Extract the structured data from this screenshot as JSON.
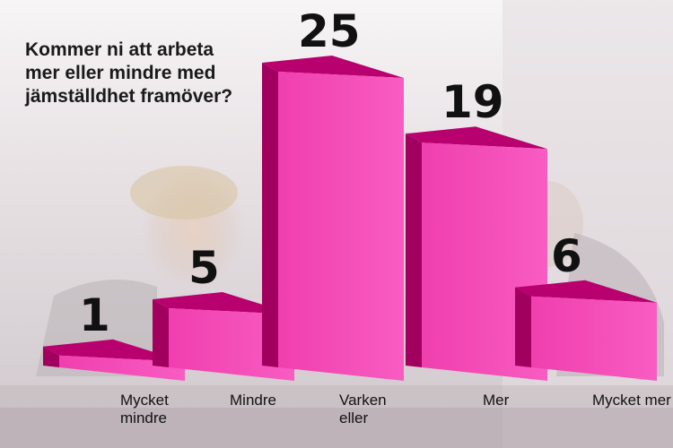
{
  "chart_data": {
    "type": "bar",
    "title_lines": [
      "Kommer ni att arbeta",
      "mer eller mindre med",
      "jämställdhet framöver?"
    ],
    "categories": [
      [
        "Mycket",
        "mindre"
      ],
      [
        "Mindre"
      ],
      [
        "Varken",
        "eller"
      ],
      [
        "Mer"
      ],
      [
        "Mycket mer"
      ]
    ],
    "values": [
      1,
      5,
      25,
      19,
      6
    ],
    "ylim": [
      0,
      25
    ],
    "grid": false,
    "legend": "none",
    "style": "3d",
    "colors": {
      "front": "#f03fae",
      "front_light": "#f85cc2",
      "side": "#a1005e",
      "top": "#b8006e"
    }
  }
}
